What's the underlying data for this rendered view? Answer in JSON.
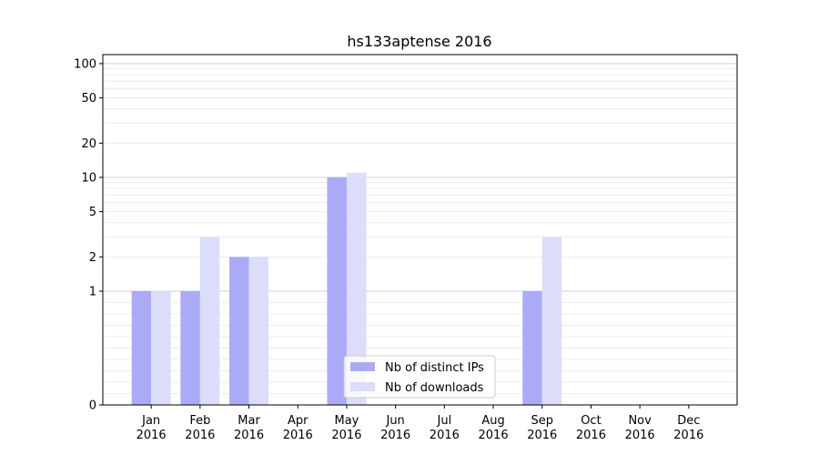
{
  "chart_data": {
    "type": "bar",
    "title": "hs133aptense 2016",
    "xlabel": "",
    "ylabel": "",
    "y_scale": "symlog",
    "ylim": [
      0,
      120
    ],
    "y_ticks": [
      0,
      1,
      2,
      5,
      10,
      20,
      50,
      100
    ],
    "y_tick_labels": [
      "0",
      "1",
      "2",
      "5",
      "10",
      "20",
      "50",
      "100"
    ],
    "grid": true,
    "legend_position": "bottom-center",
    "categories": [
      {
        "month": "Jan",
        "year": "2016"
      },
      {
        "month": "Feb",
        "year": "2016"
      },
      {
        "month": "Mar",
        "year": "2016"
      },
      {
        "month": "Apr",
        "year": "2016"
      },
      {
        "month": "May",
        "year": "2016"
      },
      {
        "month": "Jun",
        "year": "2016"
      },
      {
        "month": "Jul",
        "year": "2016"
      },
      {
        "month": "Aug",
        "year": "2016"
      },
      {
        "month": "Sep",
        "year": "2016"
      },
      {
        "month": "Oct",
        "year": "2016"
      },
      {
        "month": "Nov",
        "year": "2016"
      },
      {
        "month": "Dec",
        "year": "2016"
      }
    ],
    "series": [
      {
        "name": "Nb of distinct IPs",
        "color": "#aaaaf6",
        "values": [
          1,
          1,
          2,
          0,
          10,
          0,
          0,
          0,
          1,
          0,
          0,
          0
        ]
      },
      {
        "name": "Nb of downloads",
        "color": "#dcdcfb",
        "values": [
          1,
          3,
          2,
          0,
          11,
          0,
          0,
          0,
          3,
          0,
          0,
          0
        ]
      }
    ]
  }
}
